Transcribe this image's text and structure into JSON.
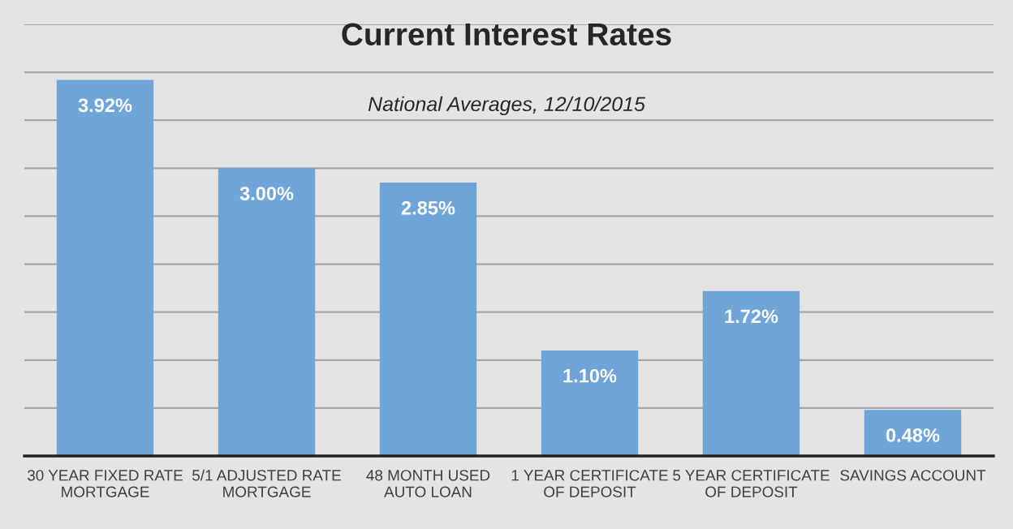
{
  "chart_data": {
    "type": "bar",
    "title": "Current Interest Rates",
    "subtitle": "National Averages, 12/10/2015",
    "categories": [
      "30 YEAR FIXED RATE\nMORTGAGE",
      "5/1 ADJUSTED RATE\nMORTGAGE",
      "48 MONTH USED\nAUTO LOAN",
      "1 YEAR CERTIFICATE\nOF DEPOSIT",
      "5 YEAR CERTIFICATE\nOF DEPOSIT",
      "SAVINGS ACCOUNT"
    ],
    "values": [
      3.92,
      3.0,
      2.85,
      1.1,
      1.72,
      0.48
    ],
    "value_labels": [
      "3.92%",
      "3.00%",
      "2.85%",
      "1.10%",
      "1.72%",
      "0.48%"
    ],
    "color": "#6fa5d8",
    "ylim": [
      0,
      4.5
    ],
    "yticks": [
      {
        "value": 0,
        "label": null
      },
      {
        "value": 0.5,
        "label": null
      },
      {
        "value": 1,
        "label": null
      },
      {
        "value": 1.5,
        "label": null
      },
      {
        "value": 2,
        "label": null
      },
      {
        "value": 2.5,
        "label": null
      },
      {
        "value": 3,
        "label": null
      },
      {
        "value": 3.5,
        "label": null
      },
      {
        "value": 4,
        "label": null
      },
      {
        "value": 4.5,
        "label": null
      }
    ],
    "grid": "y",
    "tick_labels": "x",
    "legend": false
  }
}
